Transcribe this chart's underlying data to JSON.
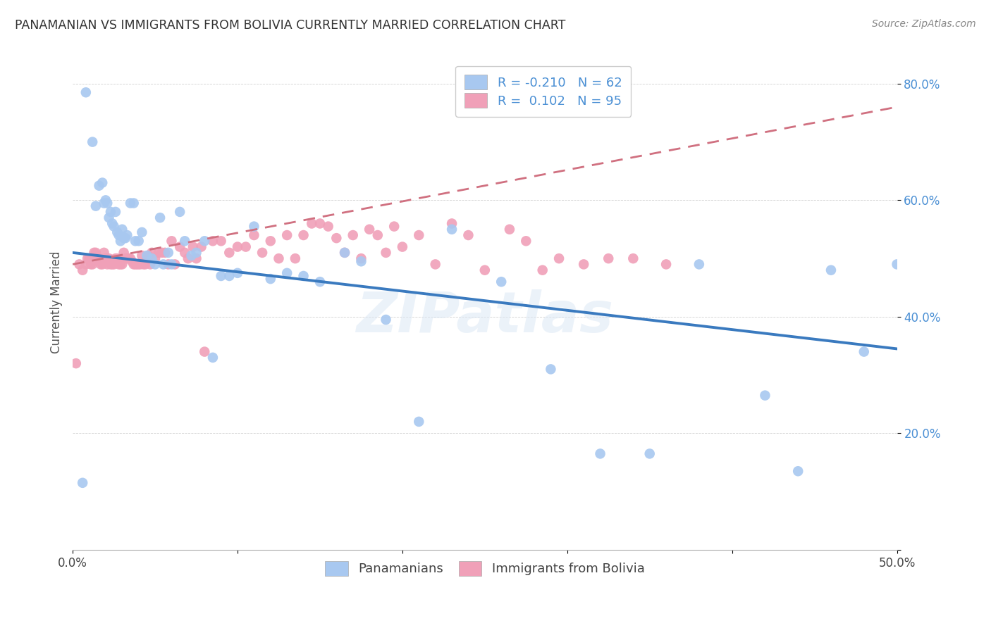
{
  "title": "PANAMANIAN VS IMMIGRANTS FROM BOLIVIA CURRENTLY MARRIED CORRELATION CHART",
  "source": "Source: ZipAtlas.com",
  "ylabel": "Currently Married",
  "watermark": "ZIPatlas",
  "legend_r1": "R = -0.210",
  "legend_n1": "N = 62",
  "legend_r2": "R =  0.102",
  "legend_n2": "N = 95",
  "legend_label1": "Panamanians",
  "legend_label2": "Immigrants from Bolivia",
  "blue_color": "#a8c8f0",
  "pink_color": "#f0a0b8",
  "blue_line_color": "#3a7abf",
  "pink_line_color": "#d07080",
  "xlim": [
    0.0,
    0.5
  ],
  "ylim": [
    0.0,
    0.85
  ],
  "yticks": [
    0.0,
    0.2,
    0.4,
    0.6,
    0.8
  ],
  "xticks": [
    0.0,
    0.1,
    0.2,
    0.3,
    0.4,
    0.5
  ],
  "blue_x": [
    0.006,
    0.008,
    0.012,
    0.014,
    0.016,
    0.018,
    0.019,
    0.02,
    0.021,
    0.022,
    0.023,
    0.024,
    0.025,
    0.026,
    0.027,
    0.028,
    0.029,
    0.03,
    0.031,
    0.032,
    0.033,
    0.035,
    0.037,
    0.038,
    0.04,
    0.042,
    0.045,
    0.048,
    0.05,
    0.053,
    0.055,
    0.058,
    0.06,
    0.065,
    0.068,
    0.072,
    0.075,
    0.08,
    0.085,
    0.09,
    0.095,
    0.1,
    0.11,
    0.12,
    0.13,
    0.14,
    0.15,
    0.165,
    0.175,
    0.19,
    0.21,
    0.23,
    0.26,
    0.29,
    0.32,
    0.35,
    0.38,
    0.42,
    0.44,
    0.46,
    0.48,
    0.5
  ],
  "blue_y": [
    0.115,
    0.785,
    0.7,
    0.59,
    0.625,
    0.63,
    0.595,
    0.6,
    0.595,
    0.57,
    0.58,
    0.56,
    0.555,
    0.58,
    0.545,
    0.54,
    0.53,
    0.55,
    0.535,
    0.535,
    0.54,
    0.595,
    0.595,
    0.53,
    0.53,
    0.545,
    0.505,
    0.5,
    0.49,
    0.57,
    0.49,
    0.51,
    0.49,
    0.58,
    0.53,
    0.505,
    0.51,
    0.53,
    0.33,
    0.47,
    0.47,
    0.475,
    0.555,
    0.465,
    0.475,
    0.47,
    0.46,
    0.51,
    0.495,
    0.395,
    0.22,
    0.55,
    0.46,
    0.31,
    0.165,
    0.165,
    0.49,
    0.265,
    0.135,
    0.48,
    0.34,
    0.49
  ],
  "pink_x": [
    0.002,
    0.004,
    0.006,
    0.008,
    0.009,
    0.01,
    0.011,
    0.012,
    0.013,
    0.014,
    0.015,
    0.016,
    0.017,
    0.018,
    0.019,
    0.02,
    0.021,
    0.022,
    0.023,
    0.024,
    0.025,
    0.026,
    0.027,
    0.028,
    0.029,
    0.03,
    0.031,
    0.032,
    0.033,
    0.034,
    0.035,
    0.036,
    0.037,
    0.038,
    0.039,
    0.04,
    0.041,
    0.042,
    0.043,
    0.044,
    0.045,
    0.046,
    0.047,
    0.048,
    0.05,
    0.052,
    0.054,
    0.056,
    0.058,
    0.06,
    0.062,
    0.065,
    0.068,
    0.07,
    0.073,
    0.075,
    0.078,
    0.08,
    0.085,
    0.09,
    0.095,
    0.1,
    0.105,
    0.11,
    0.115,
    0.12,
    0.125,
    0.13,
    0.135,
    0.14,
    0.145,
    0.15,
    0.155,
    0.16,
    0.165,
    0.17,
    0.175,
    0.18,
    0.185,
    0.19,
    0.195,
    0.2,
    0.21,
    0.22,
    0.23,
    0.24,
    0.25,
    0.265,
    0.275,
    0.285,
    0.295,
    0.31,
    0.325,
    0.34,
    0.36
  ],
  "pink_y": [
    0.32,
    0.49,
    0.48,
    0.49,
    0.5,
    0.5,
    0.49,
    0.49,
    0.51,
    0.51,
    0.5,
    0.5,
    0.49,
    0.49,
    0.51,
    0.5,
    0.49,
    0.5,
    0.49,
    0.49,
    0.49,
    0.5,
    0.5,
    0.49,
    0.49,
    0.49,
    0.51,
    0.5,
    0.5,
    0.5,
    0.5,
    0.495,
    0.49,
    0.49,
    0.49,
    0.49,
    0.49,
    0.505,
    0.49,
    0.49,
    0.5,
    0.505,
    0.49,
    0.51,
    0.5,
    0.51,
    0.51,
    0.51,
    0.49,
    0.53,
    0.49,
    0.52,
    0.51,
    0.5,
    0.52,
    0.5,
    0.52,
    0.34,
    0.53,
    0.53,
    0.51,
    0.52,
    0.52,
    0.54,
    0.51,
    0.53,
    0.5,
    0.54,
    0.5,
    0.54,
    0.56,
    0.56,
    0.555,
    0.535,
    0.51,
    0.54,
    0.5,
    0.55,
    0.54,
    0.51,
    0.555,
    0.52,
    0.54,
    0.49,
    0.56,
    0.54,
    0.48,
    0.55,
    0.53,
    0.48,
    0.5,
    0.49,
    0.5,
    0.5,
    0.49
  ],
  "blue_line_x0": 0.0,
  "blue_line_y0": 0.51,
  "blue_line_x1": 0.5,
  "blue_line_y1": 0.345,
  "pink_line_x0": 0.0,
  "pink_line_y0": 0.49,
  "pink_line_x1": 0.5,
  "pink_line_y1": 0.76
}
